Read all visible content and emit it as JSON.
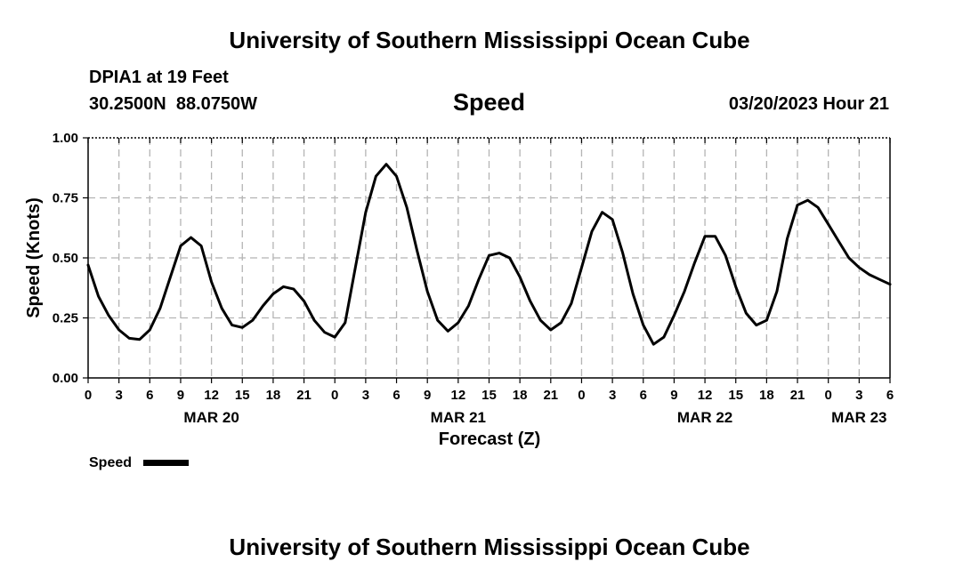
{
  "header": {
    "title": "University of Southern Mississippi Ocean Cube",
    "station": "DPIA1 at 19 Feet",
    "coords": "30.2500N  88.0750W",
    "datetime": "03/20/2023 Hour 21"
  },
  "footer": {
    "title": "University of Southern Mississippi Ocean Cube"
  },
  "chart_data": {
    "type": "line",
    "title": "Speed",
    "xlabel": "Forecast (Z)",
    "ylabel": "Speed (Knots)",
    "ylim": [
      0,
      1
    ],
    "xlim": [
      0,
      78
    ],
    "x_unit": "hours since MAR 20 00Z",
    "yticks": [
      0,
      0.25,
      0.5,
      0.75,
      1.0
    ],
    "ytick_labels": [
      "0.00",
      "0.25",
      "0.50",
      "0.75",
      "1.00"
    ],
    "xticks": [
      0,
      3,
      6,
      9,
      12,
      15,
      18,
      21,
      24,
      27,
      30,
      33,
      36,
      39,
      42,
      45,
      48,
      51,
      54,
      57,
      60,
      63,
      66,
      69,
      72,
      75,
      78
    ],
    "xtick_labels": [
      "0",
      "3",
      "6",
      "9",
      "12",
      "15",
      "18",
      "21",
      "0",
      "3",
      "6",
      "9",
      "12",
      "15",
      "18",
      "21",
      "0",
      "3",
      "6",
      "9",
      "12",
      "15",
      "18",
      "21",
      "0",
      "3",
      "6"
    ],
    "date_labels": [
      {
        "x": 12,
        "label": "MAR 20"
      },
      {
        "x": 36,
        "label": "MAR 21"
      },
      {
        "x": 60,
        "label": "MAR 22"
      },
      {
        "x": 75,
        "label": "MAR 23"
      }
    ],
    "grid": true,
    "legend": {
      "label": "Speed",
      "position": "bottom-left"
    },
    "series": [
      {
        "name": "Speed",
        "color": "#000000",
        "x": [
          0,
          1,
          2,
          3,
          4,
          5,
          6,
          7,
          8,
          9,
          10,
          11,
          12,
          13,
          14,
          15,
          16,
          17,
          18,
          19,
          20,
          21,
          22,
          23,
          24,
          25,
          26,
          27,
          28,
          29,
          30,
          31,
          32,
          33,
          34,
          35,
          36,
          37,
          38,
          39,
          40,
          41,
          42,
          43,
          44,
          45,
          46,
          47,
          48,
          49,
          50,
          51,
          52,
          53,
          54,
          55,
          56,
          57,
          58,
          59,
          60,
          61,
          62,
          63,
          64,
          65,
          66,
          67,
          68,
          69,
          70,
          71,
          72,
          73,
          74,
          75,
          76,
          77,
          78
        ],
        "y": [
          0.47,
          0.34,
          0.26,
          0.2,
          0.165,
          0.16,
          0.2,
          0.29,
          0.42,
          0.55,
          0.585,
          0.55,
          0.4,
          0.29,
          0.22,
          0.21,
          0.24,
          0.3,
          0.35,
          0.38,
          0.37,
          0.32,
          0.24,
          0.19,
          0.17,
          0.23,
          0.46,
          0.69,
          0.84,
          0.89,
          0.84,
          0.71,
          0.53,
          0.36,
          0.24,
          0.195,
          0.23,
          0.3,
          0.41,
          0.51,
          0.52,
          0.5,
          0.42,
          0.32,
          0.24,
          0.2,
          0.23,
          0.31,
          0.46,
          0.61,
          0.69,
          0.66,
          0.52,
          0.35,
          0.22,
          0.14,
          0.17,
          0.26,
          0.36,
          0.48,
          0.59,
          0.59,
          0.51,
          0.38,
          0.27,
          0.22,
          0.24,
          0.36,
          0.58,
          0.72,
          0.74,
          0.71,
          0.64,
          0.57,
          0.5,
          0.46,
          0.43,
          0.41,
          0.39
        ]
      }
    ]
  }
}
